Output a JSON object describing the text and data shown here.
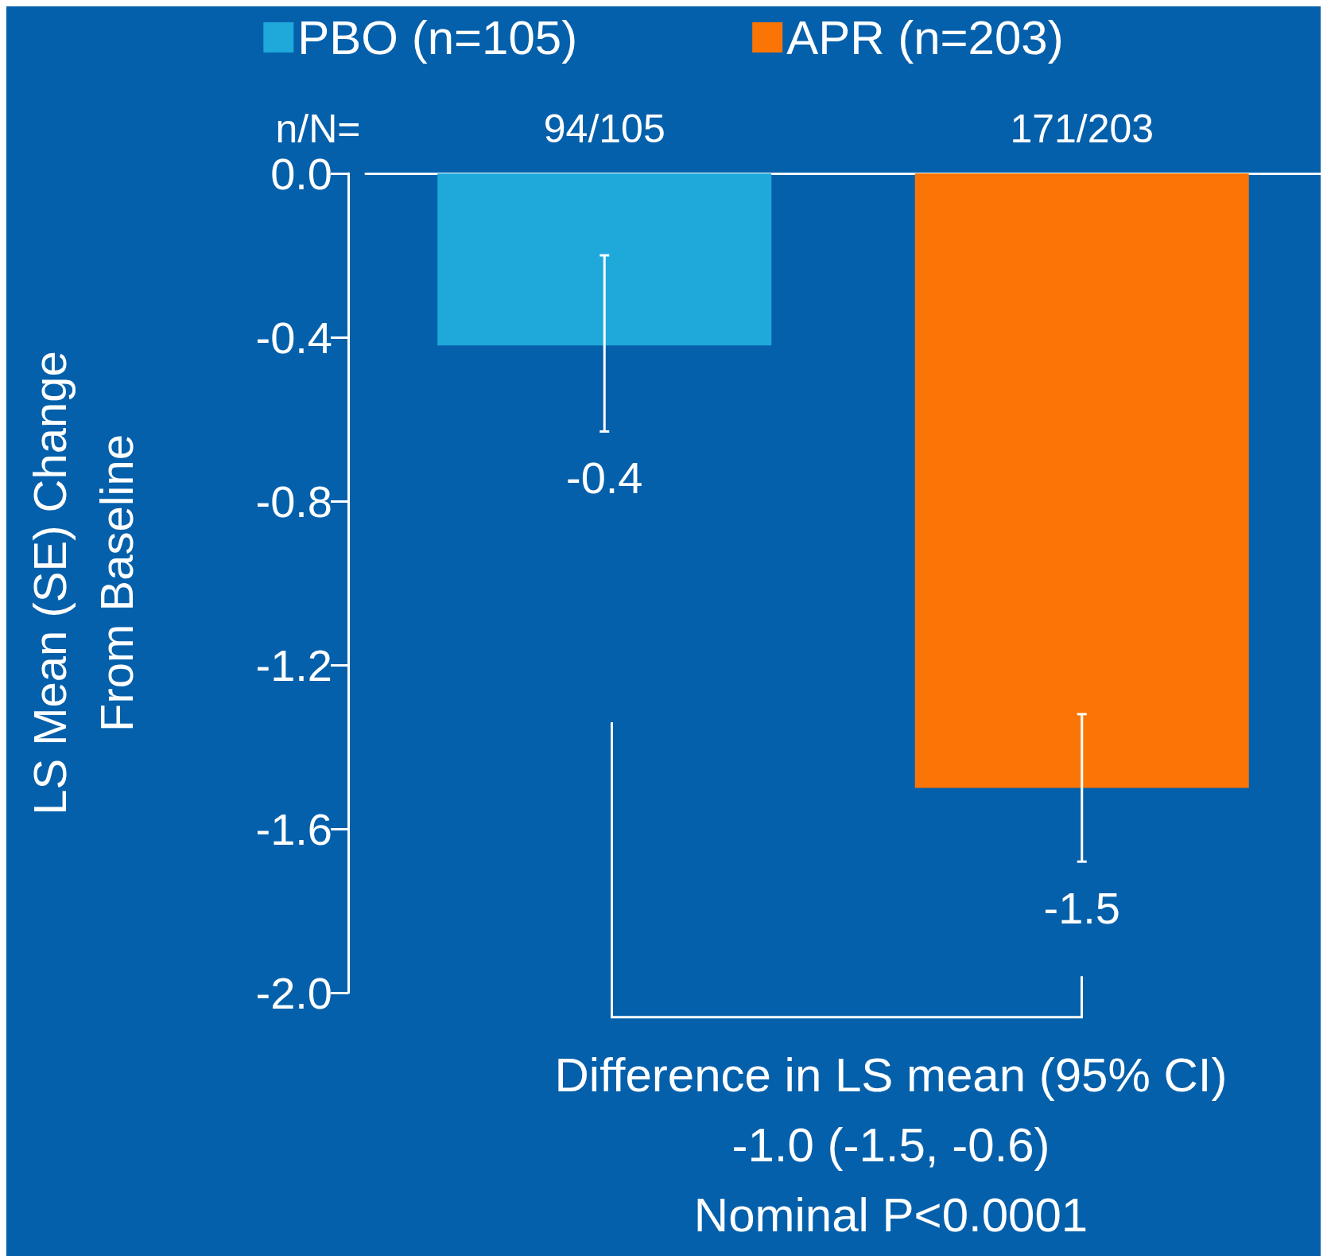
{
  "chart_data": {
    "type": "bar",
    "ylabel": "LS Mean (SE) Change\nFrom Baseline",
    "categories": [
      null,
      null
    ],
    "series": [
      {
        "name": "PBO (n=105)",
        "color": "#1fa8da",
        "values": [
          -0.42,
          null
        ],
        "errors": [
          [
            -0.63,
            -0.2
          ],
          null
        ],
        "value_labels": [
          "-0.4",
          null
        ]
      },
      {
        "name": "APR (n=203)",
        "color": "#fb7506",
        "values": [
          null,
          -1.5
        ],
        "errors": [
          null,
          [
            -1.68,
            -1.32
          ]
        ],
        "value_labels": [
          null,
          "-1.5"
        ]
      }
    ],
    "ylim": [
      -2.0,
      0.0
    ],
    "yticks": [
      {
        "value": 0,
        "label": "0.0"
      },
      {
        "value": -0.4,
        "label": "-0.4"
      },
      {
        "value": -0.8,
        "label": "-0.8"
      },
      {
        "value": -1.2,
        "label": "-1.2"
      },
      {
        "value": -1.6,
        "label": "-1.6"
      },
      {
        "value": -2,
        "label": "-2.0"
      }
    ],
    "legend": "top",
    "grid": false,
    "tick_labels": "y",
    "annotations": [
      "n/N=",
      "94/105",
      "171/203",
      "Difference in LS mean (95% CI)",
      "-1.0 (-1.5, -0.6)",
      "Nominal P<0.0001"
    ]
  }
}
